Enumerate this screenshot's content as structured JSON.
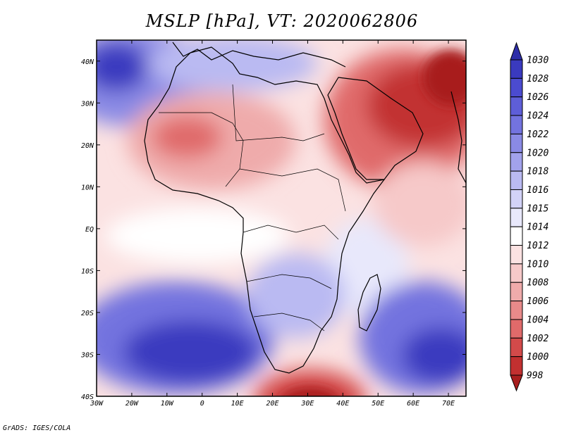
{
  "title": "MSLP [hPa], VT: 2020062806",
  "footer": "GrADS: IGES/COLA",
  "map": {
    "region": "Africa",
    "lon_range": [
      -30,
      75
    ],
    "lat_range": [
      -40,
      45
    ],
    "x_ticks": [
      "30W",
      "20W",
      "10W",
      "0",
      "10E",
      "20E",
      "30E",
      "40E",
      "50E",
      "60E",
      "70E"
    ],
    "y_ticks": [
      "40N",
      "30N",
      "20N",
      "10N",
      "EQ",
      "10S",
      "20S",
      "30S",
      "40S"
    ],
    "pressure_features": [
      {
        "name": "azores-high",
        "value": 1026
      },
      {
        "name": "saharan-low",
        "value": 1004
      },
      {
        "name": "arabian-low",
        "value": 1000
      },
      {
        "name": "st-helena-high",
        "value": 1028
      },
      {
        "name": "mascarene-high",
        "value": 1028
      },
      {
        "name": "southern-low",
        "value": 998
      }
    ]
  },
  "colorbar": {
    "levels": [
      "1030",
      "1028",
      "1026",
      "1024",
      "1022",
      "1020",
      "1018",
      "1016",
      "1015",
      "1014",
      "1012",
      "1010",
      "1008",
      "1006",
      "1004",
      "1002",
      "1000",
      "998"
    ],
    "colors": [
      "#2e2ea8",
      "#3a3abf",
      "#4b4bd0",
      "#5e5ed8",
      "#7373df",
      "#8a8ae5",
      "#a2a2ec",
      "#babaf2",
      "#d2d2f7",
      "#e8e8fb",
      "#ffffff",
      "#fbe2e2",
      "#f6c9c9",
      "#efabab",
      "#e88a8a",
      "#e06a6a",
      "#d34a4a",
      "#c23030",
      "#a81e1e"
    ]
  }
}
